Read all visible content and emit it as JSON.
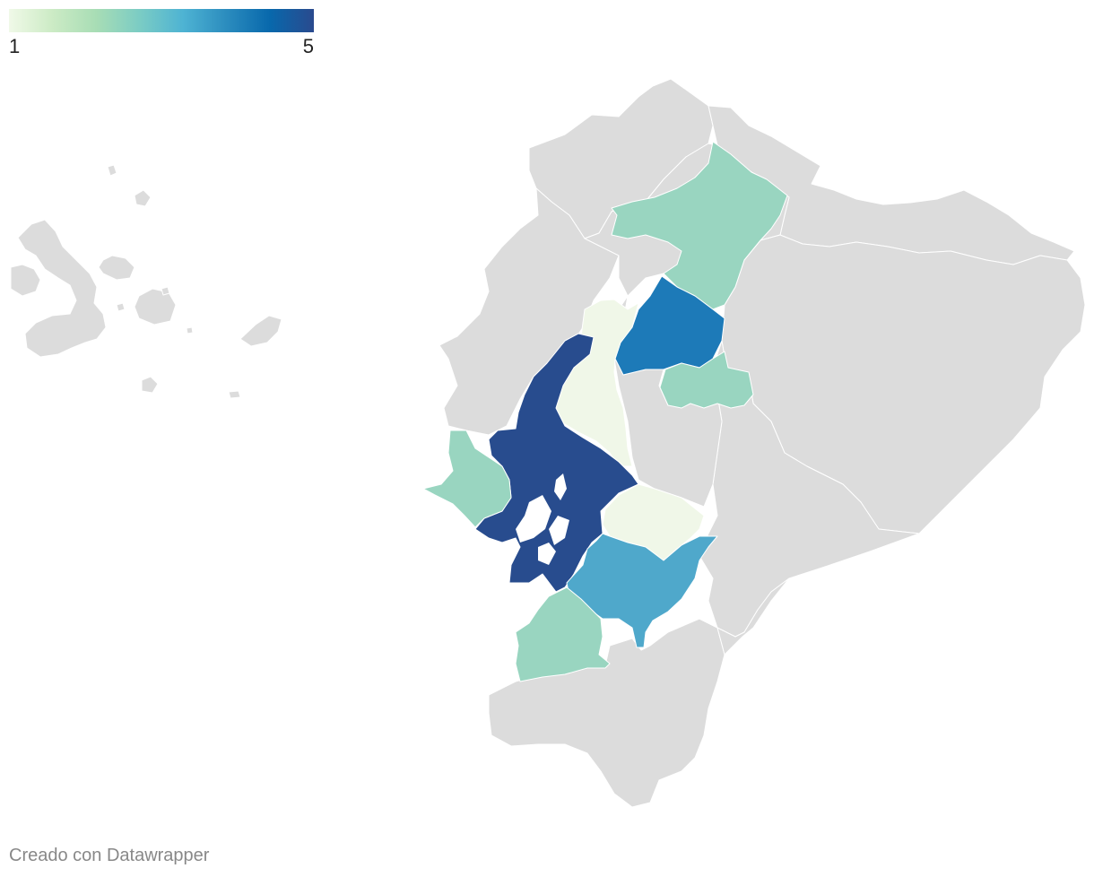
{
  "legend": {
    "min_label": "1",
    "max_label": "5",
    "gradient": [
      "#f0f9e8",
      "#ccebc5",
      "#a8ddb5",
      "#7bccc4",
      "#4eb3d3",
      "#2b8cbe",
      "#0868ac",
      "#2a4a8e"
    ]
  },
  "credit": "Creado con Datawrapper",
  "colors": {
    "no_data": "#dcdcdc",
    "border": "#ffffff",
    "level_1": "#f0f7e8",
    "level_2": "#99d5c0",
    "level_3": "#4fa8cb",
    "level_4": "#1d7ab8",
    "level_5": "#284c8e"
  },
  "regions": [
    {
      "id": "galapagos",
      "value": null
    },
    {
      "id": "region-north-tip",
      "value": null
    },
    {
      "id": "region-northeast",
      "value": null
    },
    {
      "id": "region-coast-north",
      "value": null
    },
    {
      "id": "region-coast-central",
      "value": null
    },
    {
      "id": "region-amazon-north",
      "value": null
    },
    {
      "id": "region-amazon-central",
      "value": null
    },
    {
      "id": "region-amazon-south",
      "value": null
    },
    {
      "id": "region-south-highlands",
      "value": null
    },
    {
      "id": "region-south-east",
      "value": null
    },
    {
      "id": "region-highlands-north",
      "value": null
    },
    {
      "id": "region-highlands-central",
      "value": null
    },
    {
      "id": "imbabura-pichincha",
      "value": 2
    },
    {
      "id": "napo",
      "value": 4
    },
    {
      "id": "tungurahua",
      "value": 2
    },
    {
      "id": "los-rios",
      "value": 1
    },
    {
      "id": "guayas",
      "value": 5
    },
    {
      "id": "santa-elena",
      "value": 2
    },
    {
      "id": "chimborazo",
      "value": 1
    },
    {
      "id": "azuay-canar",
      "value": 3
    },
    {
      "id": "el-oro",
      "value": 2
    }
  ]
}
